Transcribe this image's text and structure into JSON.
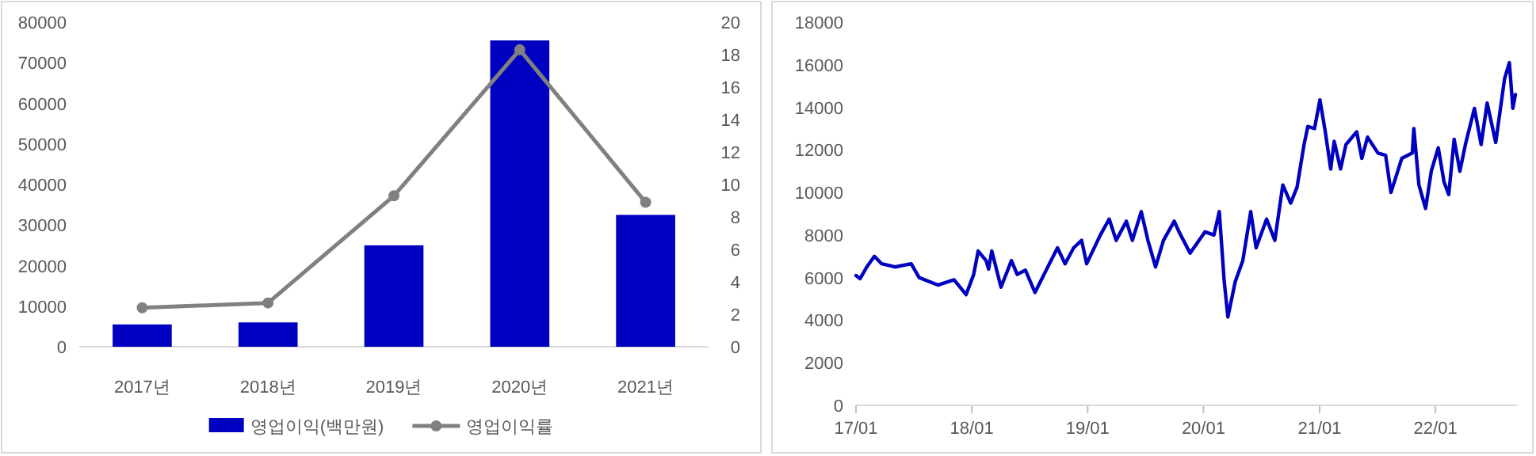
{
  "chart_data": [
    {
      "type": "bar",
      "categories": [
        "2017년",
        "2018년",
        "2019년",
        "2020년",
        "2021년"
      ],
      "series": [
        {
          "name": "영업이익(백만원)",
          "type": "bar",
          "color": "#0000c0",
          "values": [
            5500,
            6000,
            25000,
            75500,
            32500
          ]
        },
        {
          "name": "영업이익률",
          "type": "line",
          "axis": "y2",
          "color": "#808080",
          "marker": "circle",
          "values": [
            2.4,
            2.7,
            9.3,
            18.3,
            8.9
          ]
        }
      ],
      "ylim": [
        0,
        80000
      ],
      "yticks": [
        0,
        10000,
        20000,
        30000,
        40000,
        50000,
        60000,
        70000,
        80000
      ],
      "y2lim": [
        0,
        20
      ],
      "y2ticks": [
        0,
        2,
        4,
        6,
        8,
        10,
        12,
        14,
        16,
        18,
        20
      ],
      "legend": "bottom"
    },
    {
      "type": "line",
      "xlim": [
        "2017-01-01",
        "2022-09-15"
      ],
      "xticks": [
        {
          "value": "2017-01-01",
          "label": "17/01"
        },
        {
          "value": "2018-01-01",
          "label": "18/01"
        },
        {
          "value": "2019-01-01",
          "label": "19/01"
        },
        {
          "value": "2020-01-01",
          "label": "20/01"
        },
        {
          "value": "2021-01-01",
          "label": "21/01"
        },
        {
          "value": "2022-01-01",
          "label": "22/01"
        }
      ],
      "ylim": [
        0,
        18000
      ],
      "yticks": [
        0,
        2000,
        4000,
        6000,
        8000,
        10000,
        12000,
        14000,
        16000,
        18000
      ],
      "series": [
        {
          "color": "#0000c0",
          "x": [
            "2017-01-01",
            "2017-01-14",
            "2017-02-04",
            "2017-02-28",
            "2017-03-23",
            "2017-05-04",
            "2017-06-24",
            "2017-07-19",
            "2017-09-16",
            "2017-11-06",
            "2017-12-14",
            "2018-01-07",
            "2018-01-21",
            "2018-02-15",
            "2018-02-23",
            "2018-03-05",
            "2018-04-03",
            "2018-05-06",
            "2018-05-24",
            "2018-06-19",
            "2018-07-19",
            "2018-08-25",
            "2018-09-28",
            "2018-10-22",
            "2018-11-18",
            "2018-12-13",
            "2018-12-29",
            "2019-02-10",
            "2019-03-10",
            "2019-04-01",
            "2019-05-03",
            "2019-05-22",
            "2019-06-19",
            "2019-07-10",
            "2019-08-03",
            "2019-08-28",
            "2019-10-01",
            "2019-10-16",
            "2019-11-20",
            "2020-01-06",
            "2020-02-03",
            "2020-02-20",
            "2020-03-06",
            "2020-03-18",
            "2020-04-10",
            "2020-05-04",
            "2020-05-29",
            "2020-06-15",
            "2020-07-18",
            "2020-08-13",
            "2020-09-07",
            "2020-10-02",
            "2020-10-22",
            "2020-11-13",
            "2020-11-25",
            "2020-12-16",
            "2021-01-02",
            "2021-01-19",
            "2021-02-05",
            "2021-02-16",
            "2021-03-08",
            "2021-03-25",
            "2021-04-28",
            "2021-05-14",
            "2021-06-01",
            "2021-07-04",
            "2021-07-28",
            "2021-08-14",
            "2021-09-17",
            "2021-10-20",
            "2021-10-25",
            "2021-11-10",
            "2021-12-01",
            "2021-12-19",
            "2022-01-10",
            "2022-01-28",
            "2022-02-12",
            "2022-03-01",
            "2022-03-19",
            "2022-04-07",
            "2022-05-04",
            "2022-05-25",
            "2022-06-13",
            "2022-07-10",
            "2022-08-07",
            "2022-08-22",
            "2022-09-02",
            "2022-09-10"
          ],
          "values": [
            6100,
            5950,
            6500,
            7000,
            6650,
            6500,
            6650,
            6000,
            5650,
            5900,
            5200,
            6150,
            7250,
            6800,
            6400,
            7250,
            5550,
            6800,
            6150,
            6350,
            5300,
            6400,
            7400,
            6650,
            7400,
            7750,
            6650,
            8000,
            8750,
            7750,
            8650,
            7750,
            9100,
            7750,
            6500,
            7750,
            8650,
            8150,
            7150,
            8150,
            8000,
            9100,
            5900,
            4150,
            5800,
            6800,
            9100,
            7400,
            8750,
            7750,
            10350,
            9500,
            10250,
            12250,
            13100,
            13000,
            14350,
            12850,
            11100,
            12400,
            11100,
            12250,
            12850,
            11600,
            12600,
            11850,
            11750,
            10000,
            11600,
            11850,
            13000,
            10350,
            9250,
            11000,
            12100,
            10500,
            9900,
            12500,
            11000,
            12350,
            13950,
            12250,
            14200,
            12350,
            15350,
            16100,
            13950,
            14600
          ]
        }
      ]
    }
  ]
}
